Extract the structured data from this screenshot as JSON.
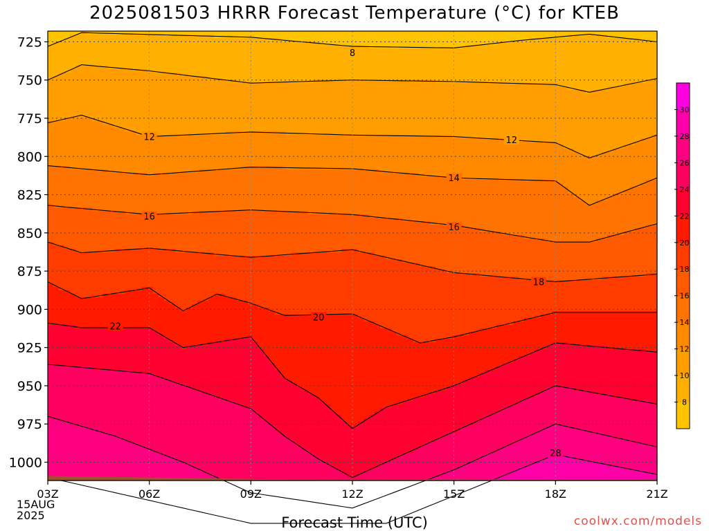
{
  "chart_data": {
    "type": "heatmap",
    "title": "2025081503 HRRR Forecast Temperature (°C) for KTEB",
    "xlabel": "Forecast Time (UTC)",
    "ylabel": "",
    "credit": "coolwx.com/models",
    "date_lines": [
      "15AUG",
      "2025"
    ],
    "x_ticks": [
      "03Z",
      "06Z",
      "09Z",
      "12Z",
      "15Z",
      "18Z",
      "21Z"
    ],
    "x_range_hours": [
      3,
      21
    ],
    "y_ticks": [
      725,
      750,
      775,
      800,
      825,
      850,
      875,
      900,
      925,
      950,
      975,
      1000
    ],
    "ylim": [
      1012,
      718
    ],
    "y_scale": "pressure (hPa)",
    "grid": true,
    "colorbar": {
      "ticks": [
        8,
        10,
        12,
        14,
        16,
        18,
        20,
        22,
        24,
        26,
        28,
        30
      ],
      "range": [
        6,
        32
      ],
      "colors": [
        "#ffc400",
        "#ffb000",
        "#ff9e00",
        "#ff8a00",
        "#ff7400",
        "#ff5a00",
        "#ff3c00",
        "#ff1a00",
        "#ff0030",
        "#ff0060",
        "#ff0080",
        "#ff00a8",
        "#ff00e0"
      ]
    },
    "ground_color": "#a0522d",
    "contour_labels": [
      {
        "text": "8",
        "t": 12,
        "p": 732
      },
      {
        "text": "12",
        "t": 6,
        "p": 787
      },
      {
        "text": "12",
        "t": 16.7,
        "p": 789
      },
      {
        "text": "14",
        "t": 15,
        "p": 814
      },
      {
        "text": "16",
        "t": 6,
        "p": 839
      },
      {
        "text": "16",
        "t": 15,
        "p": 846
      },
      {
        "text": "18",
        "t": 17.5,
        "p": 882
      },
      {
        "text": "20",
        "t": 11,
        "p": 905
      },
      {
        "text": "22",
        "t": 5,
        "p": 911
      },
      {
        "text": "28",
        "t": 18,
        "p": 994
      }
    ]
  }
}
